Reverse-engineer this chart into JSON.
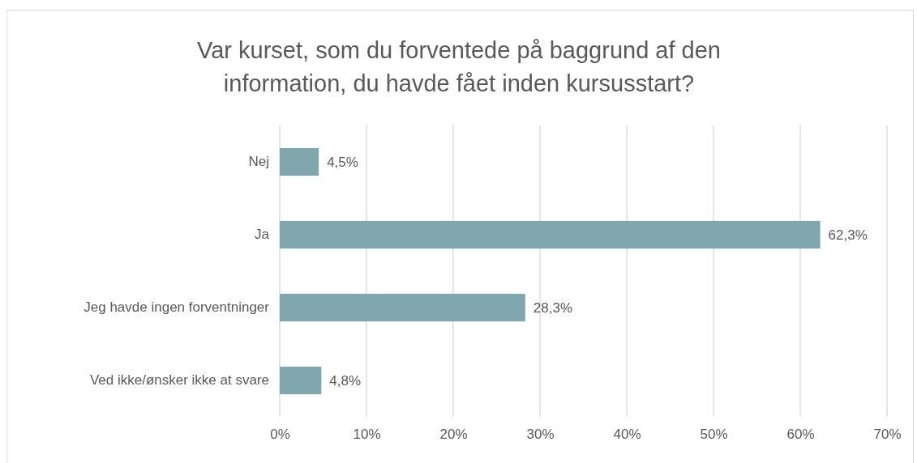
{
  "chart_data": {
    "type": "bar",
    "orientation": "horizontal",
    "title": "Var kurset, som du forventede på baggrund af den information, du havde fået inden kursusstart?",
    "categories": [
      "Nej",
      "Ja",
      "Jeg havde ingen forventninger",
      "Ved ikke/ønsker ikke at svare"
    ],
    "values": [
      4.5,
      62.3,
      28.3,
      4.8
    ],
    "color": "#7fa7ad",
    "value_labels": [
      "4,5%",
      "62,3%",
      "28,3%",
      "4,8%"
    ],
    "xlim": [
      0,
      70
    ],
    "xticks": [
      {
        "value": 0,
        "label": "0%"
      },
      {
        "value": 10,
        "label": "10%"
      },
      {
        "value": 20,
        "label": "20%"
      },
      {
        "value": 30,
        "label": "30%"
      },
      {
        "value": 40,
        "label": "40%"
      },
      {
        "value": 50,
        "label": "50%"
      },
      {
        "value": 60,
        "label": "60%"
      },
      {
        "value": 70,
        "label": "70%"
      }
    ],
    "grid": "x"
  }
}
